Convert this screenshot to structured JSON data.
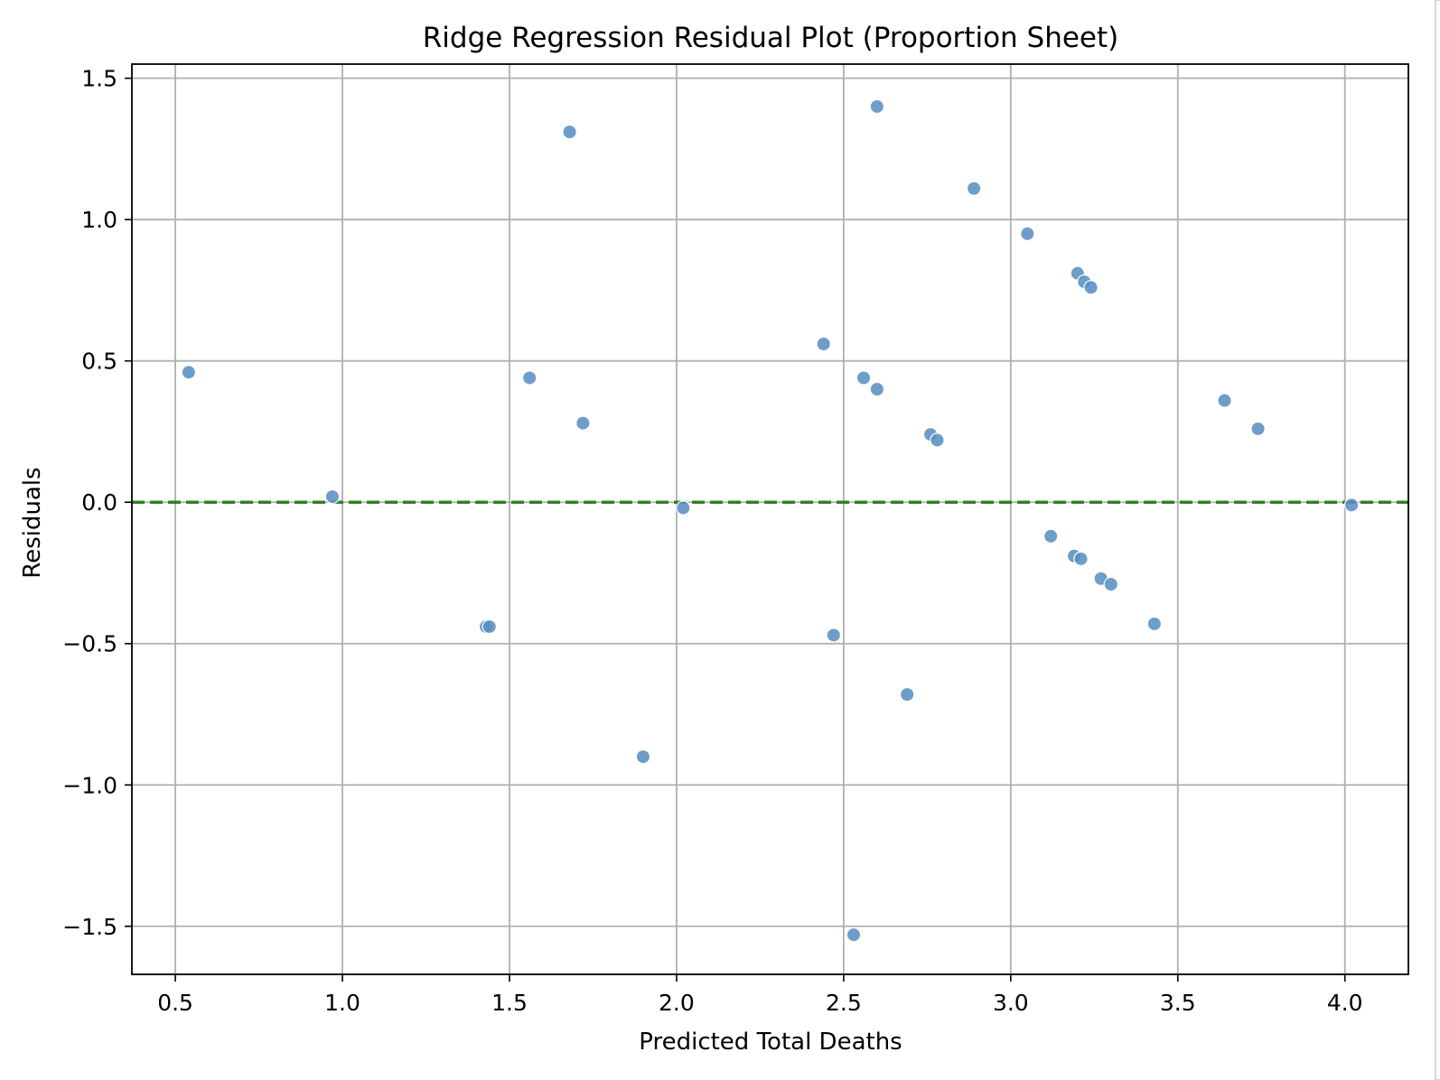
{
  "chart_data": {
    "type": "scatter",
    "title": "Ridge Regression Residual Plot (Proportion Sheet)",
    "xlabel": "Predicted Total Deaths",
    "ylabel": "Residuals",
    "xlim": [
      0.37,
      4.19
    ],
    "ylim": [
      -1.67,
      1.55
    ],
    "xticks": [
      0.5,
      1.0,
      1.5,
      2.0,
      2.5,
      3.0,
      3.5,
      4.0
    ],
    "xtick_labels": [
      "0.5",
      "1.0",
      "1.5",
      "2.0",
      "2.5",
      "3.0",
      "3.5",
      "4.0"
    ],
    "yticks": [
      1.5,
      1.0,
      0.5,
      0.0,
      -0.5,
      -1.0,
      -1.5
    ],
    "ytick_labels": [
      "1.5",
      "1.0",
      "0.5",
      "0.0",
      "−0.5",
      "−1.0",
      "−1.5"
    ],
    "grid": true,
    "reference_line": {
      "y": 0.0,
      "style": "dashed",
      "color": "#2e7d1f"
    },
    "point_color": "#5b8fc3",
    "points": [
      {
        "x": 0.54,
        "y": 0.46
      },
      {
        "x": 0.97,
        "y": 0.02
      },
      {
        "x": 1.43,
        "y": -0.44
      },
      {
        "x": 1.44,
        "y": -0.44
      },
      {
        "x": 1.56,
        "y": 0.44
      },
      {
        "x": 1.68,
        "y": 1.31
      },
      {
        "x": 1.72,
        "y": 0.28
      },
      {
        "x": 1.9,
        "y": -0.9
      },
      {
        "x": 2.02,
        "y": -0.02
      },
      {
        "x": 2.44,
        "y": 0.56
      },
      {
        "x": 2.47,
        "y": -0.47
      },
      {
        "x": 2.53,
        "y": -1.53
      },
      {
        "x": 2.56,
        "y": 0.44
      },
      {
        "x": 2.6,
        "y": 0.4
      },
      {
        "x": 2.6,
        "y": 1.4
      },
      {
        "x": 2.69,
        "y": -0.68
      },
      {
        "x": 2.76,
        "y": 0.24
      },
      {
        "x": 2.78,
        "y": 0.22
      },
      {
        "x": 2.89,
        "y": 1.11
      },
      {
        "x": 3.05,
        "y": 0.95
      },
      {
        "x": 3.12,
        "y": -0.12
      },
      {
        "x": 3.19,
        "y": -0.19
      },
      {
        "x": 3.2,
        "y": 0.81
      },
      {
        "x": 3.21,
        "y": -0.2
      },
      {
        "x": 3.22,
        "y": 0.78
      },
      {
        "x": 3.24,
        "y": 0.76
      },
      {
        "x": 3.27,
        "y": -0.27
      },
      {
        "x": 3.3,
        "y": -0.29
      },
      {
        "x": 3.43,
        "y": -0.43
      },
      {
        "x": 3.64,
        "y": 0.36
      },
      {
        "x": 3.74,
        "y": 0.26
      },
      {
        "x": 4.02,
        "y": -0.01
      }
    ]
  }
}
